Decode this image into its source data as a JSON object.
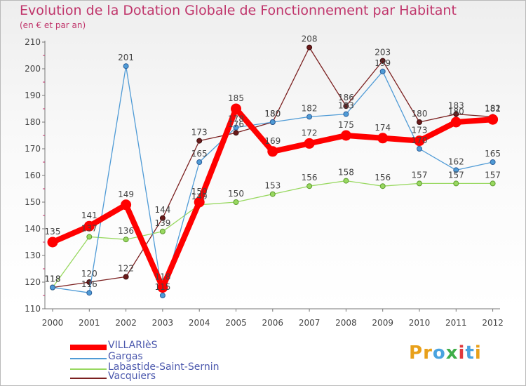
{
  "header": {
    "title": "Evolution de la Dotation Globale de Fonctionnement par Habitant",
    "subtitle": "(en € et par an)"
  },
  "chart_data": {
    "type": "line",
    "title": "Evolution de la Dotation Globale de Fonctionnement par Habitant",
    "subtitle": "(en € et par an)",
    "xlabel": "",
    "ylabel": "",
    "x": [
      2000,
      2001,
      2002,
      2003,
      2004,
      2005,
      2006,
      2007,
      2008,
      2009,
      2010,
      2011,
      2012
    ],
    "ylim": [
      110,
      210
    ],
    "yticks": [
      110,
      120,
      130,
      140,
      150,
      160,
      170,
      180,
      190,
      200,
      210
    ],
    "grid": false,
    "legend_position": "bottom-left",
    "series": [
      {
        "name": "VILLARIèS",
        "color": "#ff0000",
        "values": [
          135,
          141,
          149,
          118,
          150,
          185,
          169,
          172,
          175,
          174,
          173,
          180,
          181
        ]
      },
      {
        "name": "Gargas",
        "color": "#4f9bd6",
        "values": [
          118,
          116,
          201,
          115,
          165,
          178,
          180,
          182,
          183,
          199,
          170,
          162,
          165
        ]
      },
      {
        "name": "Labastide-Saint-Sernin",
        "color": "#98d860",
        "values": [
          118,
          137,
          136,
          139,
          149,
          150,
          153,
          156,
          158,
          156,
          157,
          157,
          157
        ]
      },
      {
        "name": "Vacquiers",
        "color": "#7b2020",
        "values": [
          118,
          120,
          122,
          144,
          173,
          176,
          180,
          208,
          186,
          203,
          180,
          183,
          182
        ]
      }
    ]
  },
  "logo": {
    "letters": [
      "P",
      "r",
      "o",
      "x",
      "i",
      "t",
      "i"
    ],
    "colors": [
      "#e8a01a",
      "#e8a01a",
      "#4aa3df",
      "#3fae49",
      "#e03a3e",
      "#4aa3df",
      "#e8a01a"
    ]
  }
}
